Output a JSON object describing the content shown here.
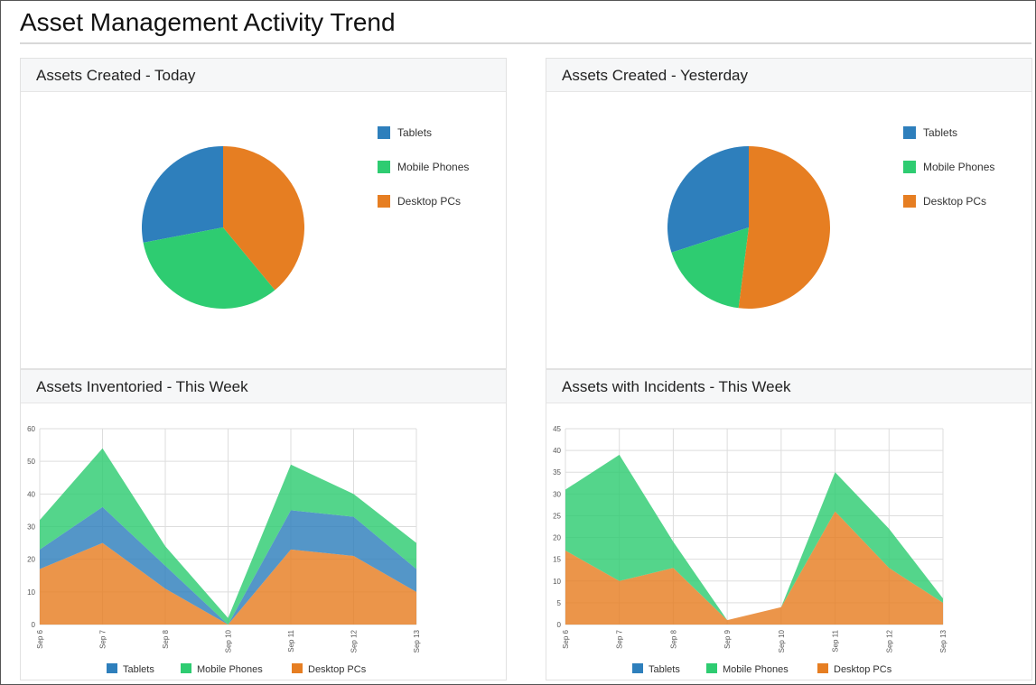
{
  "page": {
    "title": "Asset Management Activity Trend"
  },
  "colors": {
    "tablets": "#2e7fbc",
    "mobile": "#2ecc71",
    "desktop": "#e67e22",
    "grid": "#dddddd"
  },
  "panels": [
    {
      "title": "Assets Created - Today"
    },
    {
      "title": "Assets Created - Yesterday"
    },
    {
      "title": "Assets Inventoried - This Week"
    },
    {
      "title": "Assets with Incidents - This Week"
    }
  ],
  "chart_data": [
    {
      "type": "pie",
      "title": "Assets Created - Today",
      "labels": [
        "Tablets",
        "Mobile Phones",
        "Desktop PCs"
      ],
      "values": [
        28,
        33,
        39
      ],
      "legend": "right"
    },
    {
      "type": "pie",
      "title": "Assets Created - Yesterday",
      "labels": [
        "Tablets",
        "Mobile Phones",
        "Desktop PCs"
      ],
      "values": [
        30,
        18,
        52
      ],
      "legend": "right"
    },
    {
      "type": "area",
      "stacked": true,
      "title": "Assets Inventoried - This Week",
      "x": [
        "Sep 6",
        "Sep 7",
        "Sep 8",
        "Sep 10",
        "Sep 11",
        "Sep 12",
        "Sep 13"
      ],
      "ylim": [
        0,
        60
      ],
      "yticks": [
        0,
        10,
        20,
        30,
        40,
        50,
        60
      ],
      "grid": true,
      "legend": "bottom",
      "series": [
        {
          "name": "Desktop PCs",
          "values": [
            17,
            25,
            11,
            0,
            23,
            21,
            10
          ]
        },
        {
          "name": "Tablets",
          "values": [
            6,
            11,
            7,
            0,
            12,
            12,
            7
          ]
        },
        {
          "name": "Mobile Phones",
          "values": [
            9,
            18,
            6,
            2,
            14,
            7,
            8
          ]
        }
      ]
    },
    {
      "type": "area",
      "stacked": true,
      "title": "Assets with Incidents - This Week",
      "x": [
        "Sep 6",
        "Sep 7",
        "Sep 8",
        "Sep 9",
        "Sep 10",
        "Sep 11",
        "Sep 12",
        "Sep 13"
      ],
      "ylim": [
        0,
        45
      ],
      "yticks": [
        0,
        5,
        10,
        15,
        20,
        25,
        30,
        35,
        40,
        45
      ],
      "grid": true,
      "legend": "bottom",
      "series": [
        {
          "name": "Desktop PCs",
          "values": [
            17,
            10,
            13,
            1,
            4,
            26,
            13,
            5
          ]
        },
        {
          "name": "Tablets",
          "values": [
            0,
            0,
            0,
            0,
            0,
            0,
            0,
            0
          ]
        },
        {
          "name": "Mobile Phones",
          "values": [
            14,
            29,
            6,
            0,
            0,
            9,
            9,
            1
          ]
        }
      ]
    }
  ]
}
